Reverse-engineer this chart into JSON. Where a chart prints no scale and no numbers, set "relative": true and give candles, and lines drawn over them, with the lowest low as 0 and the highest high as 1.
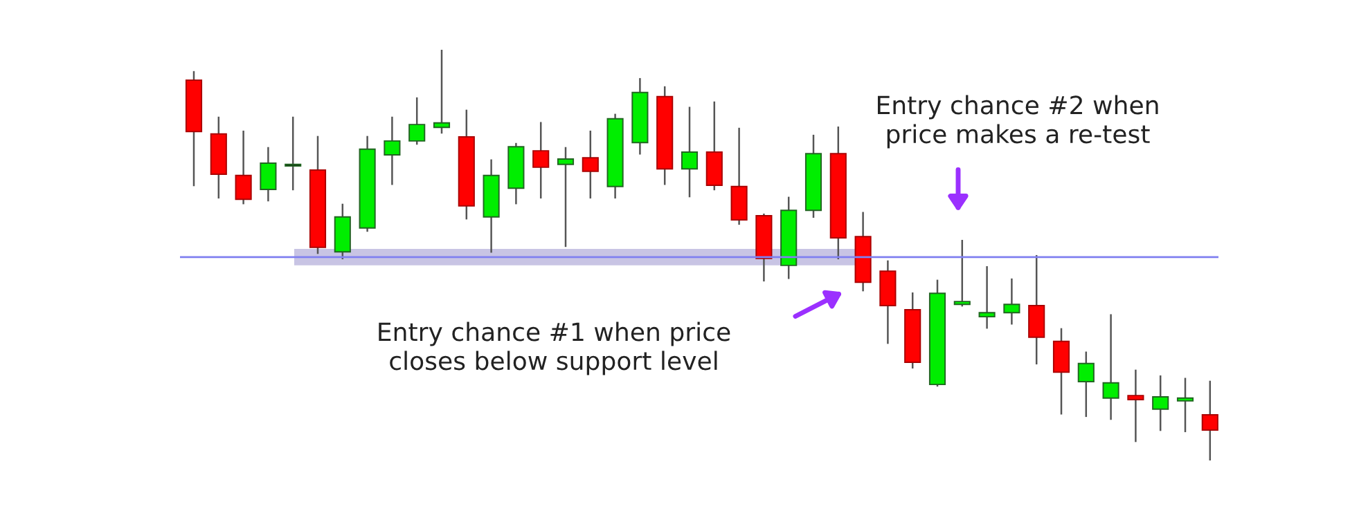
{
  "chart_data": {
    "type": "candlestick",
    "relative": true,
    "categories": [
      null,
      null,
      null,
      null,
      null,
      null,
      null,
      null,
      null,
      null,
      null,
      null,
      null,
      null,
      null,
      null,
      null,
      null,
      null,
      null,
      null,
      null,
      null,
      null,
      null,
      null,
      null,
      null,
      null,
      null,
      null,
      null,
      null,
      null,
      null,
      null,
      null,
      null,
      null,
      null,
      null,
      null
    ],
    "ohlc": [
      [
        0.926,
        0.946,
        0.67,
        0.801
      ],
      [
        0.795,
        0.835,
        0.64,
        0.697
      ],
      [
        0.694,
        0.801,
        0.626,
        0.636
      ],
      [
        0.66,
        0.761,
        0.633,
        0.724
      ],
      [
        0.717,
        0.835,
        0.66,
        0.717
      ],
      [
        0.707,
        0.788,
        0.505,
        0.519
      ],
      [
        0.508,
        0.623,
        0.492,
        0.593
      ],
      [
        0.566,
        0.788,
        0.559,
        0.758
      ],
      [
        0.744,
        0.835,
        0.673,
        0.778
      ],
      [
        0.778,
        0.882,
        0.771,
        0.818
      ],
      [
        0.811,
        1.0,
        0.798,
        0.822
      ],
      [
        0.788,
        0.852,
        0.589,
        0.62
      ],
      [
        0.593,
        0.731,
        0.508,
        0.694
      ],
      [
        0.663,
        0.771,
        0.626,
        0.764
      ],
      [
        0.754,
        0.822,
        0.64,
        0.714
      ],
      [
        0.721,
        0.761,
        0.522,
        0.734
      ],
      [
        0.737,
        0.801,
        0.64,
        0.704
      ],
      [
        0.667,
        0.842,
        0.64,
        0.832
      ],
      [
        0.774,
        0.929,
        0.747,
        0.896
      ],
      [
        0.886,
        0.909,
        0.673,
        0.71
      ],
      [
        0.71,
        0.859,
        0.643,
        0.751
      ],
      [
        0.751,
        0.872,
        0.66,
        0.67
      ],
      [
        0.667,
        0.808,
        0.576,
        0.586
      ],
      [
        0.596,
        0.599,
        0.438,
        0.492
      ],
      [
        0.475,
        0.64,
        0.444,
        0.609
      ],
      [
        0.609,
        0.791,
        0.593,
        0.747
      ],
      [
        0.747,
        0.811,
        0.492,
        0.542
      ],
      [
        0.545,
        0.603,
        0.414,
        0.434
      ],
      [
        0.461,
        0.485,
        0.286,
        0.377
      ],
      [
        0.367,
        0.407,
        0.226,
        0.239
      ],
      [
        0.185,
        0.438,
        0.182,
        0.407
      ],
      [
        0.38,
        0.535,
        0.377,
        0.387
      ],
      [
        0.35,
        0.471,
        0.323,
        0.36
      ],
      [
        0.36,
        0.441,
        0.333,
        0.38
      ],
      [
        0.377,
        0.498,
        0.236,
        0.3
      ],
      [
        0.29,
        0.32,
        0.114,
        0.215
      ],
      [
        0.192,
        0.263,
        0.108,
        0.236
      ],
      [
        0.152,
        0.354,
        0.101,
        0.189
      ],
      [
        0.158,
        0.219,
        0.047,
        0.148
      ],
      [
        0.125,
        0.205,
        0.074,
        0.155
      ],
      [
        0.145,
        0.199,
        0.071,
        0.152
      ],
      [
        0.111,
        0.192,
        0.0,
        0.074
      ]
    ],
    "colors": [
      "#ff0000",
      "#ff0000",
      "#ff0000",
      "#00ee00",
      "#000000",
      "#ff0000",
      "#00ee00",
      "#00ee00",
      "#00ee00",
      "#00ee00",
      "#00ee00",
      "#ff0000",
      "#00ee00",
      "#00ee00",
      "#ff0000",
      "#00ee00",
      "#ff0000",
      "#00ee00",
      "#00ee00",
      "#ff0000",
      "#00ee00",
      "#ff0000",
      "#ff0000",
      "#ff0000",
      "#00ee00",
      "#00ee00",
      "#ff0000",
      "#ff0000",
      "#ff0000",
      "#ff0000",
      "#00ee00",
      "#00ee00",
      "#00ee00",
      "#00ee00",
      "#ff0000",
      "#ff0000",
      "#00ee00",
      "#00ee00",
      "#ff0000",
      "#00ee00",
      "#00ee00",
      "#ff0000"
    ],
    "ref_lines": [
      {
        "axis": "y",
        "value": 0.495,
        "color": "#8080f0"
      }
    ],
    "bands": [
      {
        "axis": "y",
        "from": 0.475,
        "to": 0.515,
        "color": "#c8c4e4"
      }
    ],
    "annotations": [
      "Entry chance #1 when price\ncloses below support level",
      "Entry chance #2 when\nprice makes a re-test"
    ],
    "grid": false,
    "legend": false
  }
}
